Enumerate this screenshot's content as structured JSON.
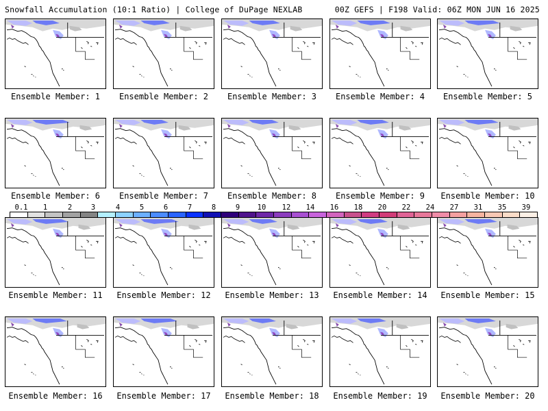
{
  "header": {
    "title": "Snowfall Accumulation (10:1 Ratio) | College of DuPage NEXLAB",
    "run_info": "00Z GEFS | F198 Valid: 06Z MON JUN 16 2025"
  },
  "legend": {
    "tick_labels": [
      "0.1",
      "1",
      "2",
      "3",
      "4",
      "5",
      "6",
      "7",
      "8",
      "9",
      "10",
      "12",
      "14",
      "16",
      "18",
      "20",
      "22",
      "24",
      "27",
      "31",
      "35",
      "39"
    ],
    "colors": [
      "#ffffff",
      "#e2e2e2",
      "#c4c4c4",
      "#a2a2a2",
      "#848484",
      "#b4f0ff",
      "#8cd2ff",
      "#6cb0ff",
      "#4c8cff",
      "#2a64ff",
      "#0a32ff",
      "#1010b4",
      "#2e007a",
      "#50148c",
      "#6e28a8",
      "#8c3cbe",
      "#a850d2",
      "#c864dc",
      "#d264be",
      "#c8508c",
      "#d03c82",
      "#d23c78",
      "#e06496",
      "#e8789a",
      "#f08ca8",
      "#f4a0a0",
      "#f6b4a0",
      "#f8c8b4",
      "#fadcc8",
      "#fcf0e6"
    ]
  },
  "panels": [
    {
      "label": "Ensemble Member: 1"
    },
    {
      "label": "Ensemble Member: 2"
    },
    {
      "label": "Ensemble Member: 3"
    },
    {
      "label": "Ensemble Member: 4"
    },
    {
      "label": "Ensemble Member: 5"
    },
    {
      "label": "Ensemble Member: 6"
    },
    {
      "label": "Ensemble Member: 7"
    },
    {
      "label": "Ensemble Member: 8"
    },
    {
      "label": "Ensemble Member: 9"
    },
    {
      "label": "Ensemble Member: 10"
    },
    {
      "label": "Ensemble Member: 11"
    },
    {
      "label": "Ensemble Member: 12"
    },
    {
      "label": "Ensemble Member: 13"
    },
    {
      "label": "Ensemble Member: 14"
    },
    {
      "label": "Ensemble Member: 15"
    },
    {
      "label": "Ensemble Member: 16"
    },
    {
      "label": "Ensemble Member: 17"
    },
    {
      "label": "Ensemble Member: 18"
    },
    {
      "label": "Ensemble Member: 19"
    },
    {
      "label": "Ensemble Member: 20"
    }
  ]
}
